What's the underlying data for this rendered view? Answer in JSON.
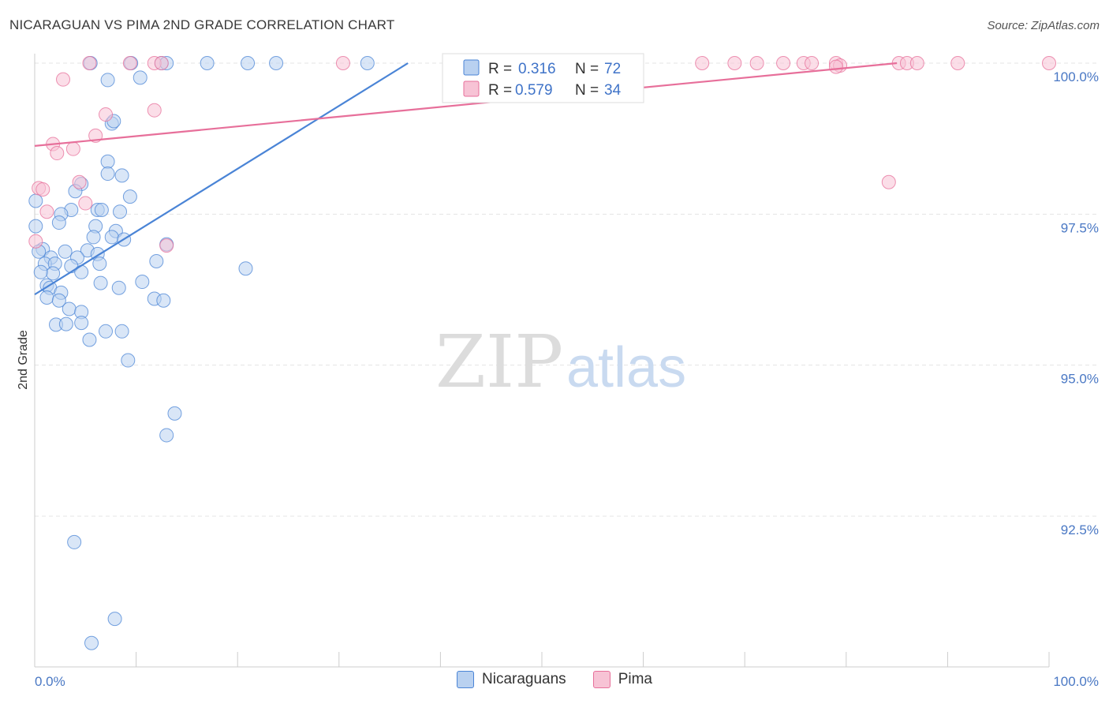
{
  "header": {
    "title": "NICARAGUAN VS PIMA 2ND GRADE CORRELATION CHART",
    "source": "Source: ZipAtlas.com"
  },
  "watermark": {
    "zip": "ZIP",
    "atlas": "atlas"
  },
  "colors": {
    "blue": "#4a84d6",
    "blue_fill": "#b9d1f0",
    "pink": "#e76f9a",
    "pink_fill": "#f7c3d5",
    "value_text": "#3f73c8"
  },
  "legend": {
    "r_label": "R =",
    "n_label": "N =",
    "rows": [
      {
        "series": "Nicaraguans",
        "r": "0.316",
        "n": "72"
      },
      {
        "series": "Pima",
        "r": "0.579",
        "n": "34"
      }
    ]
  },
  "bottom_legend": [
    "Nicaraguans",
    "Pima"
  ],
  "chart_data": {
    "type": "scatter",
    "title": "NICARAGUAN VS PIMA 2ND GRADE CORRELATION CHART",
    "xlabel": "",
    "ylabel": "2nd Grade",
    "xlim": [
      0,
      100
    ],
    "ylim": [
      90,
      100.25
    ],
    "x_tick_labels": [
      "0.0%",
      "100.0%"
    ],
    "y_ticks": [
      {
        "value": 100.0,
        "label": "100.0%"
      },
      {
        "value": 97.5,
        "label": "97.5%"
      },
      {
        "value": 95.0,
        "label": "95.0%"
      },
      {
        "value": 92.5,
        "label": "92.5%"
      }
    ],
    "series": [
      {
        "name": "Nicaraguans",
        "r": 0.316,
        "n": 72,
        "trend": {
          "x": [
            0,
            36.8
          ],
          "y": [
            96.17,
            100.0
          ]
        },
        "points": [
          [
            5.5,
            100.0
          ],
          [
            9.5,
            100.0
          ],
          [
            12.5,
            100.0
          ],
          [
            13.0,
            100.0
          ],
          [
            17.0,
            100.0
          ],
          [
            21.0,
            100.0
          ],
          [
            23.8,
            100.0
          ],
          [
            32.8,
            100.0
          ],
          [
            10.4,
            99.76
          ],
          [
            7.2,
            99.72
          ],
          [
            7.6,
            99.0
          ],
          [
            7.8,
            99.04
          ],
          [
            7.2,
            98.37
          ],
          [
            7.2,
            98.17
          ],
          [
            8.6,
            98.14
          ],
          [
            4.6,
            98.0
          ],
          [
            4.0,
            97.88
          ],
          [
            9.4,
            97.79
          ],
          [
            0.1,
            97.72
          ],
          [
            3.6,
            97.57
          ],
          [
            2.6,
            97.5
          ],
          [
            6.2,
            97.57
          ],
          [
            6.6,
            97.57
          ],
          [
            8.4,
            97.54
          ],
          [
            2.4,
            97.36
          ],
          [
            6.0,
            97.3
          ],
          [
            0.1,
            97.3
          ],
          [
            8.0,
            97.22
          ],
          [
            5.8,
            97.12
          ],
          [
            7.6,
            97.12
          ],
          [
            8.8,
            97.08
          ],
          [
            13.0,
            97.0
          ],
          [
            0.8,
            96.92
          ],
          [
            0.4,
            96.88
          ],
          [
            3.0,
            96.88
          ],
          [
            5.2,
            96.9
          ],
          [
            6.2,
            96.84
          ],
          [
            1.6,
            96.78
          ],
          [
            4.2,
            96.78
          ],
          [
            6.4,
            96.68
          ],
          [
            12.0,
            96.72
          ],
          [
            1.0,
            96.68
          ],
          [
            2.0,
            96.68
          ],
          [
            3.6,
            96.64
          ],
          [
            20.8,
            96.6
          ],
          [
            1.8,
            96.52
          ],
          [
            0.6,
            96.54
          ],
          [
            4.6,
            96.54
          ],
          [
            6.5,
            96.36
          ],
          [
            8.3,
            96.28
          ],
          [
            10.6,
            96.38
          ],
          [
            1.2,
            96.32
          ],
          [
            1.5,
            96.28
          ],
          [
            2.6,
            96.2
          ],
          [
            1.2,
            96.12
          ],
          [
            2.4,
            96.07
          ],
          [
            11.8,
            96.1
          ],
          [
            12.7,
            96.07
          ],
          [
            3.4,
            95.93
          ],
          [
            4.6,
            95.88
          ],
          [
            2.1,
            95.67
          ],
          [
            3.1,
            95.68
          ],
          [
            4.6,
            95.7
          ],
          [
            7.0,
            95.56
          ],
          [
            8.6,
            95.56
          ],
          [
            5.4,
            95.42
          ],
          [
            9.2,
            95.08
          ],
          [
            13.8,
            94.2
          ],
          [
            13.0,
            93.84
          ],
          [
            3.9,
            92.07
          ],
          [
            7.9,
            90.8
          ],
          [
            5.6,
            90.4
          ]
        ]
      },
      {
        "name": "Pima",
        "r": 0.579,
        "n": 34,
        "trend": {
          "x": [
            0,
            85.0
          ],
          "y": [
            98.63,
            100.0
          ]
        },
        "points": [
          [
            5.4,
            100.0
          ],
          [
            9.4,
            100.0
          ],
          [
            11.8,
            100.0
          ],
          [
            12.5,
            100.0
          ],
          [
            30.4,
            100.0
          ],
          [
            65.8,
            100.0
          ],
          [
            69.0,
            100.0
          ],
          [
            71.2,
            100.0
          ],
          [
            73.8,
            100.0
          ],
          [
            75.8,
            100.0
          ],
          [
            76.6,
            100.0
          ],
          [
            79.0,
            100.0
          ],
          [
            79.4,
            99.96
          ],
          [
            79.0,
            99.94
          ],
          [
            85.2,
            100.0
          ],
          [
            86.0,
            100.0
          ],
          [
            87.0,
            100.0
          ],
          [
            91.0,
            100.0
          ],
          [
            100.0,
            100.0
          ],
          [
            2.8,
            99.73
          ],
          [
            11.8,
            99.22
          ],
          [
            7.0,
            99.15
          ],
          [
            6.0,
            98.8
          ],
          [
            1.8,
            98.66
          ],
          [
            3.8,
            98.58
          ],
          [
            2.2,
            98.51
          ],
          [
            4.4,
            98.03
          ],
          [
            84.2,
            98.03
          ],
          [
            0.4,
            97.93
          ],
          [
            0.8,
            97.91
          ],
          [
            5.0,
            97.68
          ],
          [
            1.2,
            97.54
          ],
          [
            0.1,
            97.05
          ],
          [
            13.0,
            96.98
          ]
        ]
      }
    ]
  }
}
